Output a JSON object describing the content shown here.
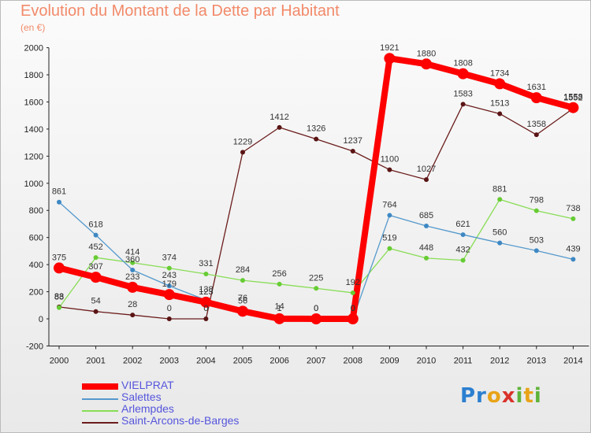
{
  "title": "Evolution du Montant de la Dette par Habitant",
  "subtitle": "(en €)",
  "logo_text": "Proxiti",
  "chart_data": {
    "type": "line",
    "title": "Evolution du Montant de la Dette par Habitant",
    "subtitle": "(en €)",
    "xlabel": "",
    "ylabel": "",
    "ylim": [
      -200,
      2000
    ],
    "yticks": [
      -200,
      0,
      200,
      400,
      600,
      800,
      1000,
      1200,
      1400,
      1600,
      1800,
      2000
    ],
    "grid": false,
    "legend_position": "bottom-left",
    "x": [
      "2000",
      "2001",
      "2002",
      "2003",
      "2004",
      "2005",
      "2006",
      "2007",
      "2008",
      "2009",
      "2010",
      "2011",
      "2012",
      "2013",
      "2014"
    ],
    "series": [
      {
        "name": "Saint-Arcons-de-Barges",
        "color": "#6b1c1c",
        "values": [
          88,
          54,
          28,
          0,
          0,
          1229,
          1412,
          1326,
          1237,
          1100,
          1027,
          1583,
          1513,
          1358,
          1552
        ]
      },
      {
        "name": "Arlempdes",
        "color": "#88dd55",
        "values": [
          83,
          452,
          414,
          374,
          331,
          284,
          256,
          225,
          192,
          519,
          448,
          432,
          881,
          798,
          738
        ]
      },
      {
        "name": "Salettes",
        "color": "#5599cc",
        "values": [
          861,
          618,
          360,
          243,
          138,
          76,
          14,
          0,
          0,
          764,
          685,
          621,
          560,
          503,
          439
        ]
      },
      {
        "name": "VIELPRAT",
        "color": "#ff0000",
        "values": [
          375,
          307,
          233,
          179,
          123,
          56,
          1,
          0,
          0,
          1921,
          1880,
          1808,
          1734,
          1631,
          1558
        ]
      }
    ]
  }
}
